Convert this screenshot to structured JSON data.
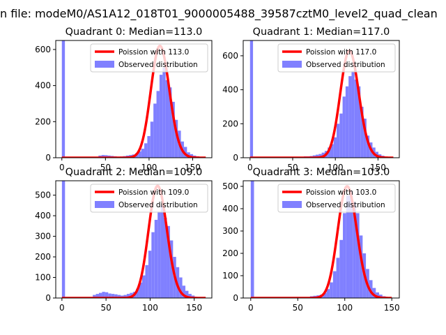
{
  "figure": {
    "suptitle": "n file: modeM0/AS1A12_018T01_9000005488_39587cztM0_level2_quad_clean"
  },
  "colors": {
    "hist_fill": "#8080ff",
    "poisson_line": "#ff0000",
    "axes": "#000000",
    "background": "#ffffff"
  },
  "chart_data": [
    {
      "type": "bar",
      "title": "Quadrant 0: Median=113.0",
      "median": 113.0,
      "xlim": [
        -7,
        172
      ],
      "ylim": [
        0,
        650
      ],
      "xticks": [
        0,
        50,
        100,
        150
      ],
      "yticks": [
        0,
        200,
        400,
        600
      ],
      "bin_width": 3.5,
      "bins": [
        [
          0,
          650
        ],
        [
          42,
          12
        ],
        [
          45.5,
          15
        ],
        [
          49,
          14
        ],
        [
          52.5,
          12
        ],
        [
          56,
          10
        ],
        [
          59.5,
          8
        ],
        [
          63,
          6
        ],
        [
          66.5,
          7
        ],
        [
          70,
          9
        ],
        [
          73.5,
          12
        ],
        [
          77,
          15
        ],
        [
          80.5,
          18
        ],
        [
          84,
          25
        ],
        [
          87.5,
          35
        ],
        [
          91,
          50
        ],
        [
          94.5,
          80
        ],
        [
          98,
          120
        ],
        [
          101.5,
          200
        ],
        [
          105,
          300
        ],
        [
          108.5,
          370
        ],
        [
          112,
          460
        ],
        [
          115.5,
          500
        ],
        [
          119,
          430
        ],
        [
          122.5,
          390
        ],
        [
          126,
          310
        ],
        [
          129.5,
          210
        ],
        [
          133,
          150
        ],
        [
          136.5,
          90
        ],
        [
          140,
          60
        ],
        [
          143.5,
          30
        ],
        [
          147,
          20
        ],
        [
          150.5,
          12
        ],
        [
          154,
          8
        ],
        [
          157.5,
          5
        ]
      ],
      "poisson": {
        "label": "Poission with 113.0",
        "mean": 113.0,
        "peak": 620,
        "x_range": [
          0,
          165
        ]
      },
      "legend": {
        "entries": [
          "Poission with 113.0",
          "Observed distribution"
        ],
        "placement": "top-right"
      }
    },
    {
      "type": "bar",
      "title": "Quadrant 1: Median=117.0",
      "median": 117.0,
      "xlim": [
        -8,
        175
      ],
      "ylim": [
        0,
        690
      ],
      "xticks": [
        0,
        50,
        100,
        150
      ],
      "yticks": [
        0,
        200,
        400,
        600
      ],
      "bin_width": 3.5,
      "bins": [
        [
          0,
          690
        ],
        [
          56,
          6
        ],
        [
          59.5,
          6
        ],
        [
          63,
          8
        ],
        [
          66.5,
          8
        ],
        [
          70,
          10
        ],
        [
          73.5,
          14
        ],
        [
          77,
          18
        ],
        [
          80.5,
          22
        ],
        [
          84,
          30
        ],
        [
          87.5,
          40
        ],
        [
          91,
          60
        ],
        [
          94.5,
          80
        ],
        [
          98,
          120
        ],
        [
          101.5,
          200
        ],
        [
          105,
          260
        ],
        [
          108.5,
          360
        ],
        [
          112,
          420
        ],
        [
          115.5,
          480
        ],
        [
          119,
          510
        ],
        [
          122.5,
          460
        ],
        [
          126,
          420
        ],
        [
          129.5,
          300
        ],
        [
          133,
          230
        ],
        [
          136.5,
          130
        ],
        [
          140,
          90
        ],
        [
          143.5,
          60
        ],
        [
          147,
          35
        ],
        [
          150.5,
          20
        ],
        [
          154,
          12
        ],
        [
          157.5,
          6
        ]
      ],
      "poisson": {
        "label": "Poission with 117.0",
        "mean": 117.0,
        "peak": 630,
        "x_range": [
          0,
          168
        ]
      },
      "legend": {
        "entries": [
          "Poission with 117.0",
          "Observed distribution"
        ],
        "placement": "top-right"
      }
    },
    {
      "type": "bar",
      "title": "Quadrant 2: Median=109.0",
      "median": 109.0,
      "xlim": [
        -7,
        170
      ],
      "ylim": [
        0,
        570
      ],
      "xticks": [
        0,
        50,
        100,
        150
      ],
      "yticks": [
        0,
        100,
        200,
        300,
        400,
        500
      ],
      "bin_width": 3.5,
      "bins": [
        [
          0,
          570
        ],
        [
          35,
          15
        ],
        [
          38.5,
          20
        ],
        [
          42,
          25
        ],
        [
          45.5,
          30
        ],
        [
          49,
          28
        ],
        [
          52.5,
          22
        ],
        [
          56,
          20
        ],
        [
          59.5,
          18
        ],
        [
          63,
          15
        ],
        [
          66.5,
          12
        ],
        [
          70,
          15
        ],
        [
          73.5,
          20
        ],
        [
          77,
          25
        ],
        [
          80.5,
          30
        ],
        [
          84,
          45
        ],
        [
          87.5,
          75
        ],
        [
          91,
          110
        ],
        [
          94.5,
          160
        ],
        [
          98,
          230
        ],
        [
          101.5,
          320
        ],
        [
          105,
          380
        ],
        [
          108.5,
          420
        ],
        [
          112,
          450
        ],
        [
          115.5,
          390
        ],
        [
          119,
          350
        ],
        [
          122.5,
          280
        ],
        [
          126,
          200
        ],
        [
          129.5,
          150
        ],
        [
          133,
          100
        ],
        [
          136.5,
          60
        ],
        [
          140,
          35
        ],
        [
          143.5,
          20
        ],
        [
          147,
          12
        ],
        [
          150.5,
          6
        ]
      ],
      "poisson": {
        "label": "Poission with 109.0",
        "mean": 109.0,
        "peak": 545,
        "x_range": [
          0,
          163
        ]
      },
      "legend": {
        "entries": [
          "Poission with 109.0",
          "Observed distribution"
        ],
        "placement": "top-right"
      }
    },
    {
      "type": "bar",
      "title": "Quadrant 3: Median=103.0",
      "median": 103.0,
      "xlim": [
        -8,
        158
      ],
      "ylim": [
        0,
        525
      ],
      "xticks": [
        0,
        50,
        100,
        150
      ],
      "yticks": [
        0,
        100,
        200,
        300,
        400,
        500
      ],
      "bin_width": 3.5,
      "bins": [
        [
          0,
          525
        ],
        [
          63,
          8
        ],
        [
          66.5,
          10
        ],
        [
          70,
          12
        ],
        [
          73.5,
          15
        ],
        [
          77,
          22
        ],
        [
          80.5,
          40
        ],
        [
          84,
          70
        ],
        [
          87.5,
          120
        ],
        [
          91,
          180
        ],
        [
          94.5,
          260
        ],
        [
          98,
          380
        ],
        [
          101.5,
          460
        ],
        [
          105,
          480
        ],
        [
          108.5,
          430
        ],
        [
          112,
          380
        ],
        [
          115.5,
          280
        ],
        [
          119,
          200
        ],
        [
          122.5,
          130
        ],
        [
          126,
          80
        ],
        [
          129.5,
          45
        ],
        [
          133,
          25
        ],
        [
          136.5,
          15
        ],
        [
          140,
          8
        ],
        [
          143.5,
          4
        ]
      ],
      "poisson": {
        "label": "Poission with 103.0",
        "mean": 103.0,
        "peak": 500,
        "x_range": [
          0,
          150
        ]
      },
      "legend": {
        "entries": [
          "Poission with 103.0",
          "Observed distribution"
        ],
        "placement": "top-right"
      }
    }
  ]
}
